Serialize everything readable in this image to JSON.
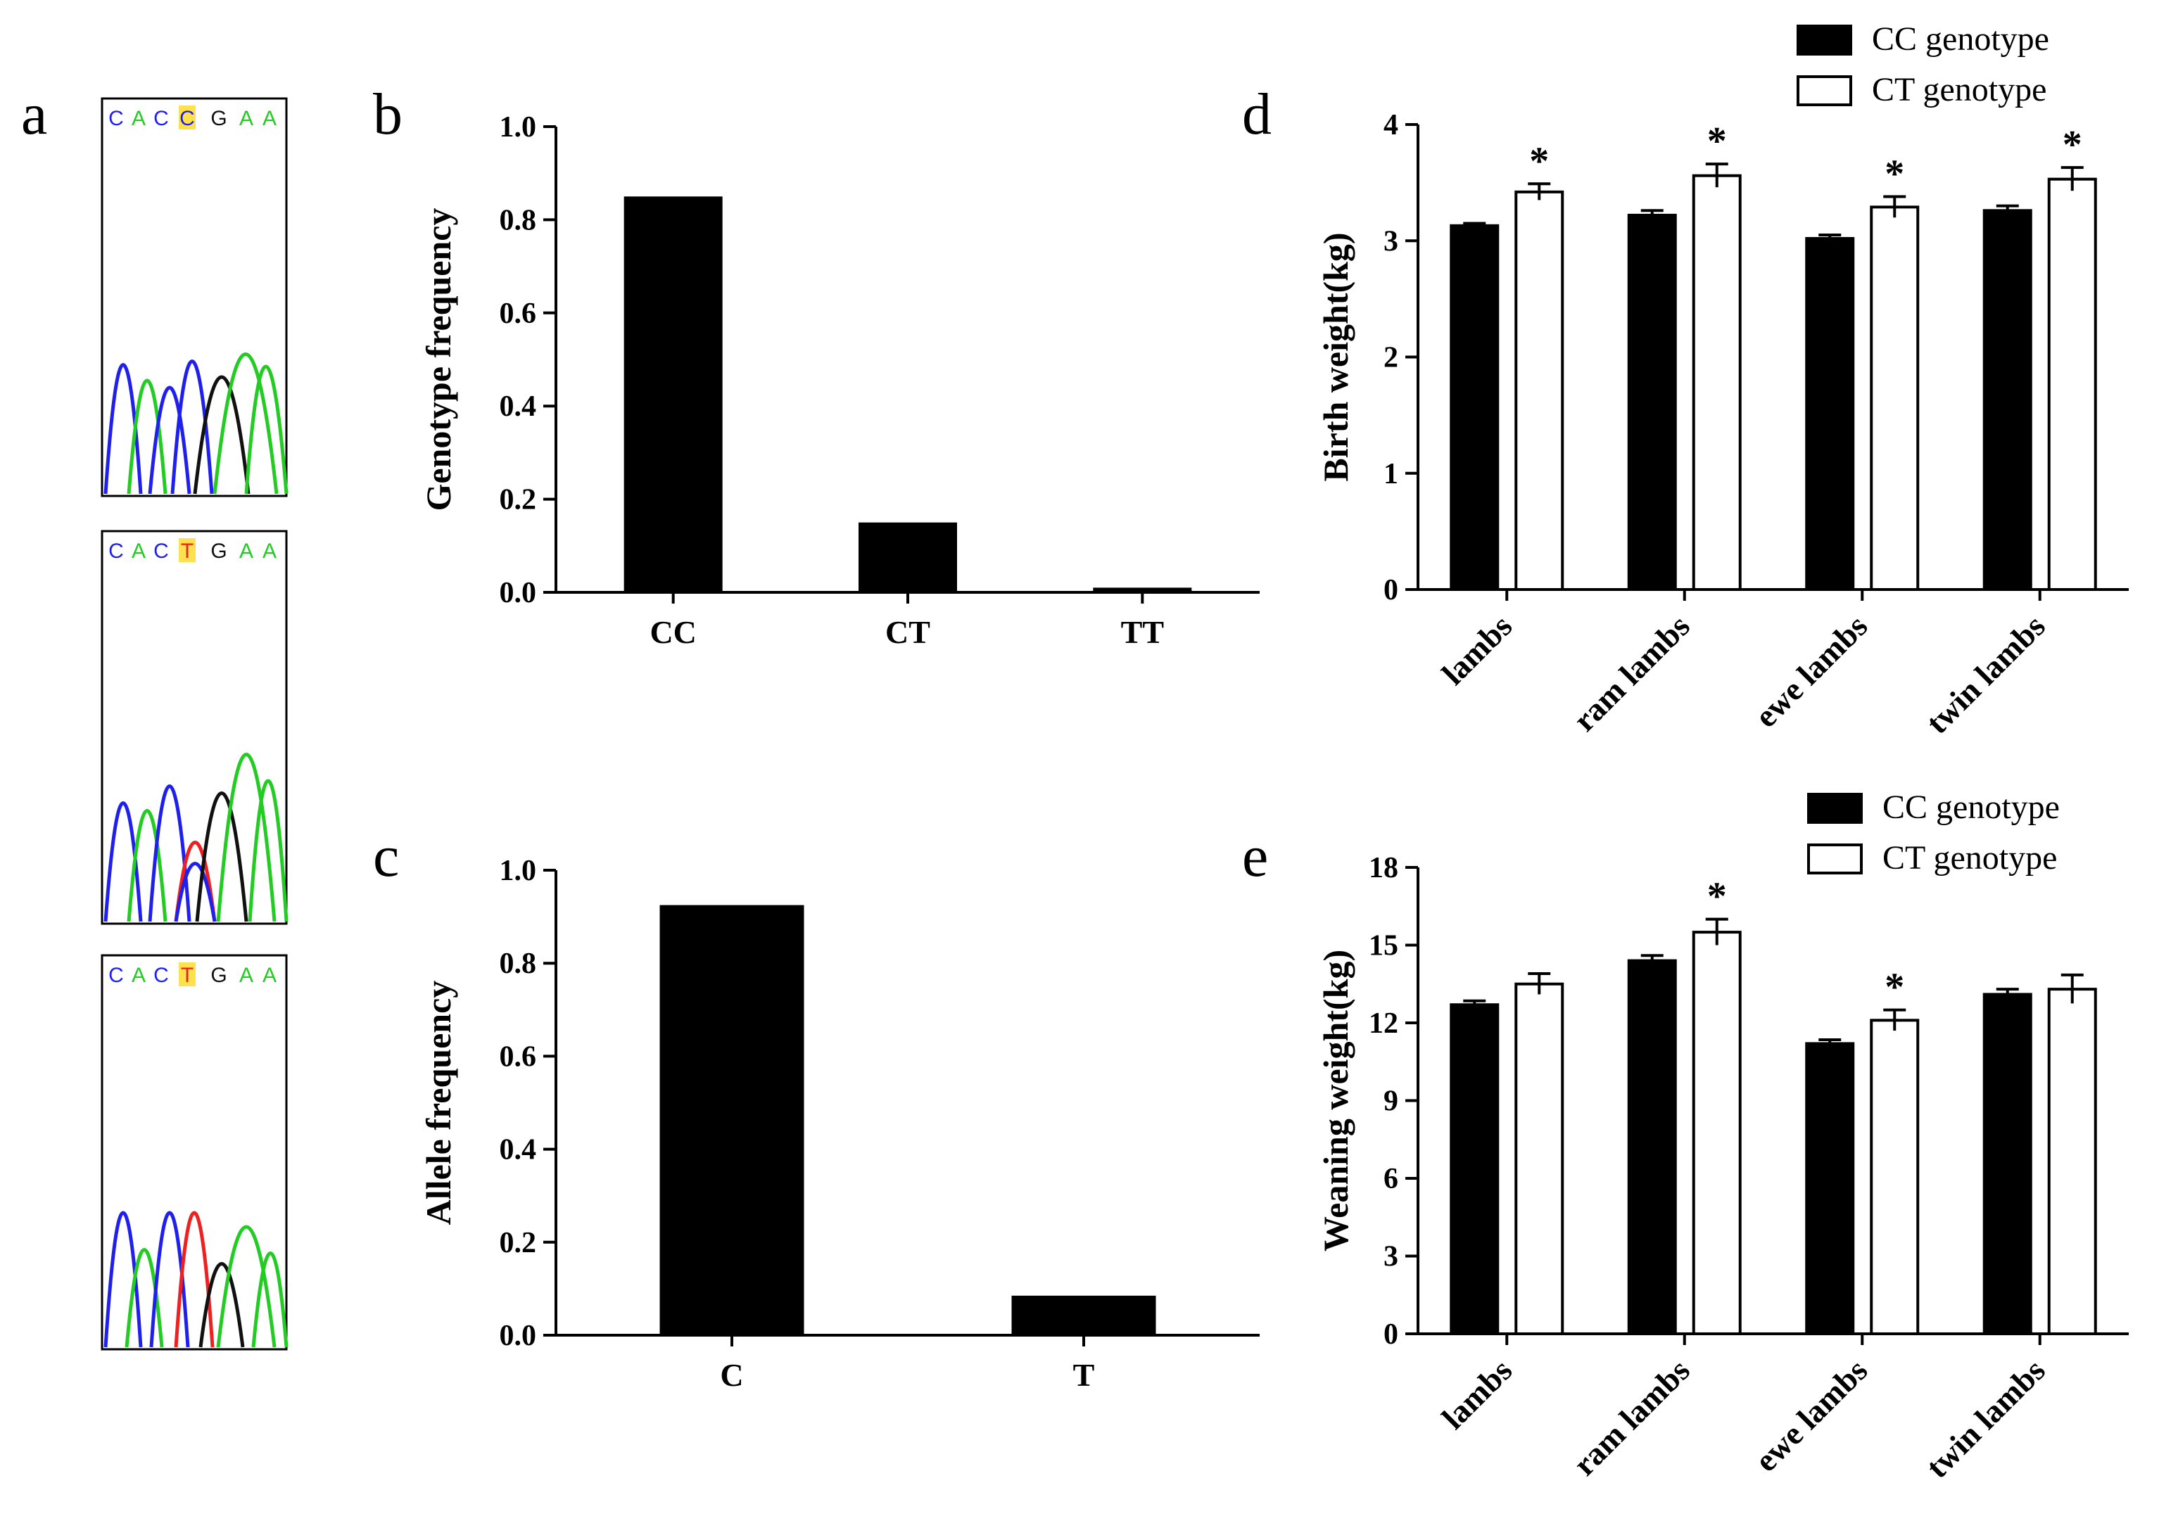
{
  "panel_letters": {
    "a": "a",
    "b": "b",
    "c": "c",
    "d": "d",
    "e": "e"
  },
  "colors": {
    "bar_cc": "#000000",
    "bar_ct": "#ffffff",
    "trace_a": "#22cc22",
    "trace_c": "#2020ee",
    "trace_g": "#111111",
    "trace_t": "#ee2020",
    "highlight": "#ffe14d"
  },
  "panel_a": {
    "chromatograms": [
      {
        "bases": [
          "C",
          "A",
          "C",
          "C",
          "G",
          "A",
          "A"
        ],
        "highlight_index": 3
      },
      {
        "bases": [
          "C",
          "A",
          "C",
          "T",
          "G",
          "A",
          "A"
        ],
        "highlight_index": 3
      },
      {
        "bases": [
          "C",
          "A",
          "C",
          "T",
          "G",
          "A",
          "A"
        ],
        "highlight_index": 3
      }
    ]
  },
  "chart_data": [
    {
      "id": "b",
      "type": "bar",
      "title": "",
      "categories": [
        "CC",
        "CT",
        "TT"
      ],
      "values": [
        0.85,
        0.15,
        0.01
      ],
      "xlabel": "",
      "ylabel": "Genotype frequency",
      "ylim": [
        0,
        1.0
      ],
      "yticks": [
        "0.0",
        "0.2",
        "0.4",
        "0.6",
        "0.8",
        "1.0"
      ]
    },
    {
      "id": "c",
      "type": "bar",
      "title": "",
      "categories": [
        "C",
        "T"
      ],
      "values": [
        0.925,
        0.085
      ],
      "xlabel": "",
      "ylabel": "Allele frequency",
      "ylim": [
        0,
        1.0
      ],
      "yticks": [
        "0.0",
        "0.2",
        "0.4",
        "0.6",
        "0.8",
        "1.0"
      ]
    },
    {
      "id": "d",
      "type": "bar",
      "title": "",
      "categories": [
        "lambs",
        "ram lambs",
        "ewe lambs",
        "twin lambs"
      ],
      "series": [
        {
          "name": "CC genotype",
          "values": [
            3.13,
            3.22,
            3.02,
            3.26
          ],
          "errors": [
            0.02,
            0.04,
            0.03,
            0.04
          ]
        },
        {
          "name": "CT genotype",
          "values": [
            3.42,
            3.56,
            3.29,
            3.53
          ],
          "errors": [
            0.07,
            0.1,
            0.09,
            0.1
          ]
        }
      ],
      "significance": [
        "*",
        "*",
        "*",
        "*"
      ],
      "xlabel": "",
      "ylabel": "Birth weight(kg)",
      "ylim": [
        0,
        4
      ],
      "yticks": [
        "0",
        "1",
        "2",
        "3",
        "4"
      ],
      "legend": "top-right"
    },
    {
      "id": "e",
      "type": "bar",
      "title": "",
      "categories": [
        "lambs",
        "ram lambs",
        "ewe lambs",
        "twin lambs"
      ],
      "series": [
        {
          "name": "CC genotype",
          "values": [
            12.7,
            14.4,
            11.2,
            13.1
          ],
          "errors": [
            0.15,
            0.2,
            0.15,
            0.2
          ]
        },
        {
          "name": "CT genotype",
          "values": [
            13.5,
            15.5,
            12.1,
            13.3
          ],
          "errors": [
            0.4,
            0.5,
            0.4,
            0.55
          ]
        }
      ],
      "significance": [
        "",
        "*",
        "*",
        ""
      ],
      "xlabel": "",
      "ylabel": "Weaning weight(kg)",
      "ylim": [
        0,
        18
      ],
      "yticks": [
        "0",
        "3",
        "6",
        "9",
        "12",
        "15",
        "18"
      ],
      "legend": "top-right"
    }
  ]
}
